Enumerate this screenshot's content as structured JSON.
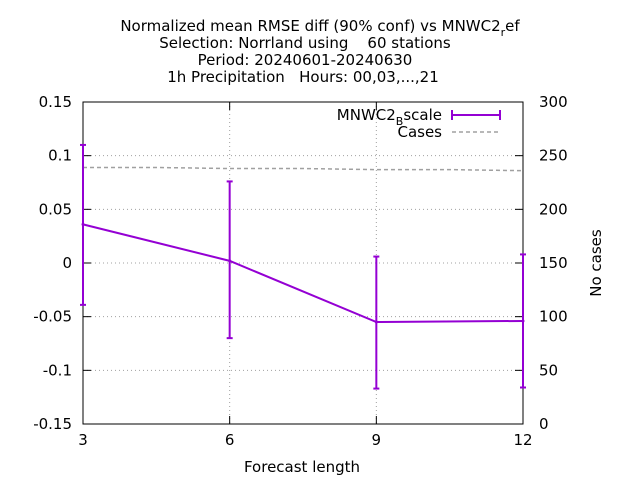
{
  "chart_data": {
    "type": "line",
    "title_lines": [
      "Normalized mean RMSE diff (90% conf) vs MNWC2_ref",
      "Selection: Norrland using    60 stations",
      "Period: 20240601-20240630",
      "1h Precipitation   Hours: 00,03,...,21"
    ],
    "title_line1_main": "Normalized mean RMSE diff (90% conf) vs MNWC2",
    "title_line1_sub": "r",
    "title_line1_tail": "ef",
    "xlabel": "Forecast length",
    "ylabel": "",
    "y2label": "No cases",
    "x_ticks": [
      "3",
      "6",
      "9",
      "12"
    ],
    "y_ticks": [
      "0.15",
      "0.1",
      "0.05",
      "0",
      "-0.05",
      "-0.1",
      "-0.15"
    ],
    "y2_ticks": [
      "300",
      "250",
      "200",
      "150",
      "100",
      "50",
      "0"
    ],
    "xlim": [
      3,
      12
    ],
    "ylim": [
      -0.15,
      0.15
    ],
    "y2lim": [
      0,
      300
    ],
    "grid": true,
    "legend_placement": "top-right",
    "colors": {
      "series": "#9400d3",
      "cases": "#a0a0a0",
      "grid": "#a0a0a0"
    },
    "series": [
      {
        "name": "MNWC2_Bscale",
        "legend_main": "MNWC2",
        "legend_sub": "B",
        "legend_tail": "scale",
        "x": [
          3,
          6,
          9,
          12
        ],
        "values": [
          0.036,
          0.002,
          -0.055,
          -0.054
        ],
        "err_low": [
          -0.039,
          -0.07,
          -0.117,
          -0.116
        ],
        "err_high": [
          0.11,
          0.076,
          0.006,
          0.008
        ]
      },
      {
        "name": "Cases",
        "axis": "y2",
        "x": [
          3,
          4.5,
          6,
          7.5,
          9,
          10.5,
          12
        ],
        "values": [
          239,
          239,
          238,
          238,
          237,
          237,
          236
        ]
      }
    ]
  }
}
